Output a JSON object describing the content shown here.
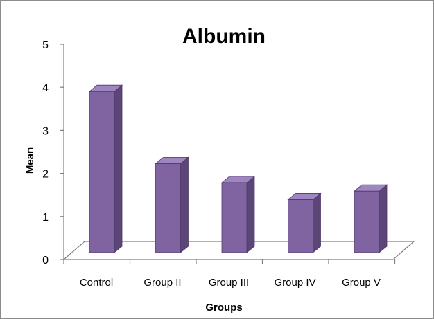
{
  "chart_data": {
    "type": "bar",
    "style": "3d-column",
    "title": "Albumin",
    "xlabel": "Groups",
    "ylabel": "Mean",
    "categories": [
      "Control",
      "Group II",
      "Group III",
      "Group IV",
      "Group V"
    ],
    "values": [
      3.8,
      2.1,
      1.65,
      1.25,
      1.45
    ],
    "ylim": [
      0,
      5
    ],
    "yticks": [
      "0",
      "1",
      "2",
      "3",
      "4",
      "5"
    ],
    "grid": false,
    "legend": "none",
    "bar_color": "#8064a2",
    "bar_top_color": "#9e86c0",
    "bar_side_color": "#5c4678",
    "bar_outline_color": "#4f3a6b"
  }
}
